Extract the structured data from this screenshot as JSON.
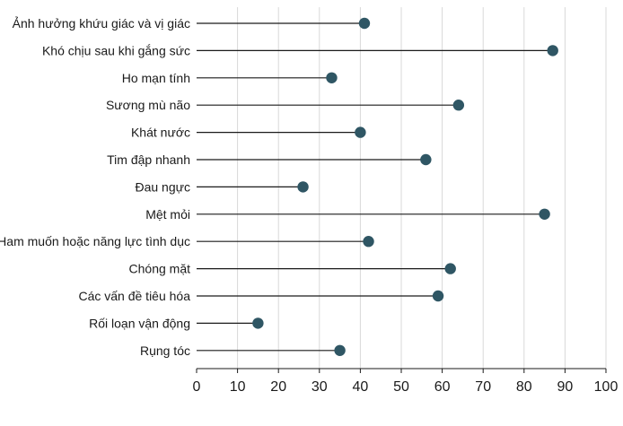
{
  "chart_data": {
    "type": "lollipop",
    "title": "",
    "xlabel": "",
    "ylabel": "",
    "xlim": [
      0,
      100
    ],
    "x_ticks": [
      0,
      10,
      20,
      30,
      40,
      50,
      60,
      70,
      80,
      90,
      100
    ],
    "grid": "vertical",
    "categories": [
      "Ảnh hưởng khứu giác và vị giác",
      "Khó chịu sau khi gắng sức",
      "Ho mạn tính",
      "Sương mù não",
      "Khát nước",
      "Tim đập nhanh",
      "Đau ngực",
      "Mệt mỏi",
      "Ham muốn hoặc năng lực tình dục",
      "Chóng mặt",
      "Các vấn đề tiêu hóa",
      "Rối loạn vận động",
      "Rụng tóc"
    ],
    "values": [
      41,
      87,
      33,
      64,
      40,
      56,
      26,
      85,
      42,
      62,
      59,
      15,
      35
    ],
    "colors": {
      "marker": "#2f5664",
      "stem": "#1a1a1a",
      "grid": "#d9d9d9",
      "text": "#1a1a1a"
    }
  }
}
